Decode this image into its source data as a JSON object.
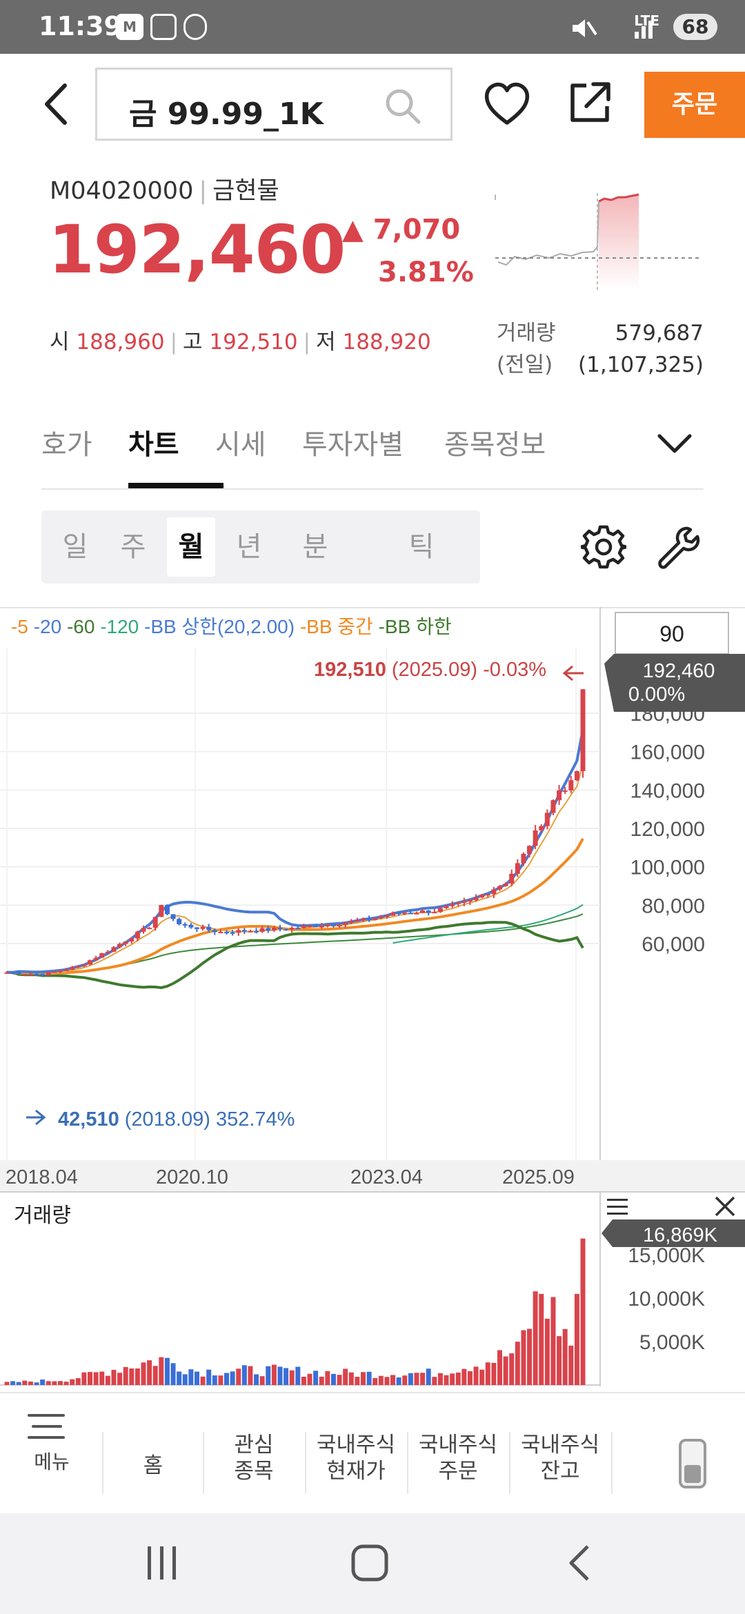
{
  "status_bar": {
    "time": "11:39",
    "badge_m": "M",
    "network": "LTE",
    "battery": "68"
  },
  "header": {
    "search_value": "금 99.99_1K",
    "order_label": "주문"
  },
  "quote": {
    "code": "M04020000",
    "market": "금현물",
    "price": "192,460",
    "change": "▲ 7,070",
    "change_pct": "3.81%",
    "open_label": "시",
    "open": "188,960",
    "high_label": "고",
    "high": "192,510",
    "low_label": "저",
    "low": "188,920",
    "volume_label": "거래량",
    "volume": "579,687",
    "prev_volume_label": "(전일)",
    "prev_volume": "(1,107,325)"
  },
  "tabs": [
    {
      "label": "호가"
    },
    {
      "label": "차트"
    },
    {
      "label": "시세"
    },
    {
      "label": "투자자별"
    },
    {
      "label": "종목정보"
    }
  ],
  "periods": [
    {
      "label": "일"
    },
    {
      "label": "주"
    },
    {
      "label": "월"
    },
    {
      "label": "년"
    },
    {
      "label": "분"
    },
    {
      "label": "틱"
    }
  ],
  "chart_data": {
    "type": "candlestick",
    "legend": [
      {
        "label": "-5",
        "color": "#f08a24"
      },
      {
        "label": "-20",
        "color": "#4a7bd0"
      },
      {
        "label": "-60",
        "color": "#3f7a2e"
      },
      {
        "label": "-120",
        "color": "#2fa87a"
      },
      {
        "label": "-BB 상한(20,2.00)",
        "color": "#4a7bd0"
      },
      {
        "label": "-BB 중간",
        "color": "#f08a24"
      },
      {
        "label": "-BB 하한",
        "color": "#3f7a2e"
      }
    ],
    "period_input": "90",
    "current_price_label": "192,460",
    "current_change_label": "0.00%",
    "max_annotation": {
      "value": "192,510",
      "date": "(2025.09)",
      "change": "-0.03%"
    },
    "min_annotation": {
      "value": "42,510",
      "date": "(2018.09)",
      "change": "352.74%"
    },
    "ylim": [
      40000,
      200000
    ],
    "y_ticks": [
      60000,
      80000,
      100000,
      120000,
      140000,
      160000,
      180000
    ],
    "y_tick_labels": [
      "60,000",
      "80,000",
      "100,000",
      "120,000",
      "140,000",
      "160,000",
      "180,000"
    ],
    "x_tick_labels": [
      "2018.04",
      "2020.10",
      "2023.04",
      "2025.09"
    ],
    "volume_title": "거래량",
    "volume_current_label": "16,869K",
    "volume_ylim": [
      0,
      17000
    ],
    "volume_ticks": [
      5000,
      10000,
      15000
    ],
    "volume_tick_labels": [
      "5,000K",
      "10,000K",
      "15,000K"
    ],
    "candle_control_points": [
      [
        0,
        45000
      ],
      [
        6,
        44000
      ],
      [
        12,
        48000
      ],
      [
        18,
        58000
      ],
      [
        24,
        69000
      ],
      [
        26,
        79000
      ],
      [
        29,
        70000
      ],
      [
        36,
        66000
      ],
      [
        48,
        68000
      ],
      [
        60,
        72000
      ],
      [
        66,
        76000
      ],
      [
        72,
        77000
      ],
      [
        78,
        82000
      ],
      [
        84,
        92000
      ],
      [
        87,
        106000
      ],
      [
        90,
        123000
      ],
      [
        93,
        140000
      ],
      [
        95,
        143000
      ],
      [
        96,
        150000
      ],
      [
        97,
        192460
      ]
    ],
    "volume_control_points": [
      [
        0,
        300
      ],
      [
        10,
        600
      ],
      [
        18,
        1800
      ],
      [
        26,
        3000
      ],
      [
        32,
        1600
      ],
      [
        44,
        1700
      ],
      [
        60,
        1300
      ],
      [
        72,
        1400
      ],
      [
        80,
        2600
      ],
      [
        86,
        3800
      ],
      [
        90,
        10800
      ],
      [
        93,
        7000
      ],
      [
        95,
        4800
      ],
      [
        97,
        16869
      ]
    ]
  },
  "bottom_nav": {
    "menu_label": "메뉴",
    "items": [
      {
        "label": "홈"
      },
      {
        "label": "관심\n종목"
      },
      {
        "label": "국내주식\n현재가"
      },
      {
        "label": "국내주식\n주문"
      },
      {
        "label": "국내주식\n잔고"
      }
    ]
  }
}
